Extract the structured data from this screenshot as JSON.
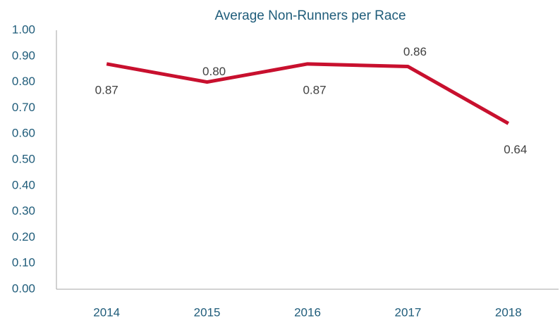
{
  "chart_data": {
    "type": "line",
    "title": "Average Non-Runners per Race",
    "categories": [
      "2014",
      "2015",
      "2016",
      "2017",
      "2018"
    ],
    "values": [
      0.87,
      0.8,
      0.87,
      0.86,
      0.64
    ],
    "value_labels": [
      "0.87",
      "0.80",
      "0.87",
      "0.86",
      "0.64"
    ],
    "color": "#c8102e",
    "ylim": [
      0,
      1
    ],
    "yticks": [
      {
        "value": 0,
        "label": "0.00"
      },
      {
        "value": 0.1,
        "label": "0.10"
      },
      {
        "value": 0.2,
        "label": "0.20"
      },
      {
        "value": 0.3,
        "label": "0.30"
      },
      {
        "value": 0.4,
        "label": "0.40"
      },
      {
        "value": 0.5,
        "label": "0.50"
      },
      {
        "value": 0.6,
        "label": "0.60"
      },
      {
        "value": 0.7,
        "label": "0.70"
      },
      {
        "value": 0.8,
        "label": "0.80"
      },
      {
        "value": 0.9,
        "label": "0.90"
      },
      {
        "value": 1,
        "label": "1.00"
      }
    ],
    "grid": false
  }
}
